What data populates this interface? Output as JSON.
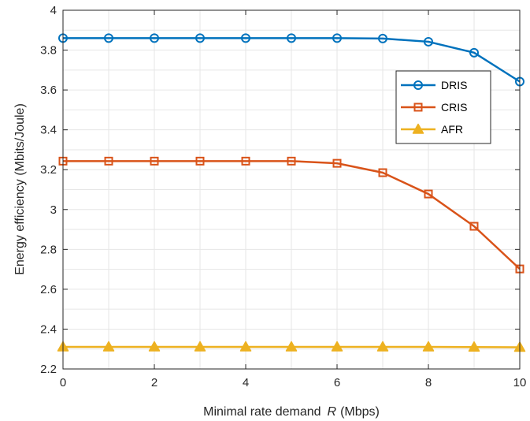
{
  "chart_data": {
    "type": "line",
    "xlabel_main": "Minimal rate demand",
    "xlabel_var": "R",
    "xlabel_unit": "(Mbps)",
    "ylabel": "Energy efficiency (Mbits/Joule)",
    "xlim": [
      0,
      10
    ],
    "ylim": [
      2.2,
      4
    ],
    "x_ticks": [
      "0",
      "2",
      "4",
      "6",
      "8",
      "10"
    ],
    "y_ticks": [
      "2.2",
      "2.4",
      "2.6",
      "2.8",
      "3",
      "3.2",
      "3.4",
      "3.6",
      "3.8",
      "4"
    ],
    "grid": true,
    "legend_position": "right",
    "x": [
      0,
      1,
      2,
      3,
      4,
      5,
      6,
      7,
      8,
      9,
      10
    ],
    "series": [
      {
        "name": "DRIS",
        "color": "#0072BD",
        "marker": "circle",
        "values": [
          3.86,
          3.86,
          3.86,
          3.86,
          3.86,
          3.86,
          3.86,
          3.858,
          3.842,
          3.787,
          3.642
        ]
      },
      {
        "name": "CRIS",
        "color": "#D95319",
        "marker": "square",
        "values": [
          3.243,
          3.243,
          3.243,
          3.243,
          3.243,
          3.243,
          3.232,
          3.185,
          3.078,
          2.916,
          2.702
        ]
      },
      {
        "name": "AFR",
        "color": "#EDB120",
        "marker": "triangle",
        "values": [
          2.311,
          2.311,
          2.311,
          2.311,
          2.311,
          2.311,
          2.311,
          2.311,
          2.311,
          2.31,
          2.309
        ]
      }
    ]
  }
}
